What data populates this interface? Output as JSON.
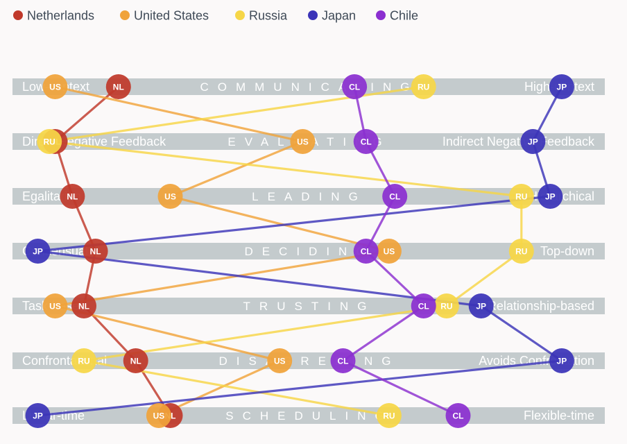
{
  "chart_data": {
    "type": "line",
    "title": "",
    "x_range": [
      0,
      1
    ],
    "legend_position": "top-left",
    "scales": [
      {
        "name": "COMMUNICATING",
        "left": "Low-context",
        "right": "High-context"
      },
      {
        "name": "EVALUATING",
        "left": "Direct Negative Feedback",
        "right": "Indirect Negative Feedback"
      },
      {
        "name": "LEADING",
        "left": "Egalitarian",
        "right": "Hierarchical"
      },
      {
        "name": "DECIDING",
        "left": "Consensual",
        "right": "Top-down"
      },
      {
        "name": "TRUSTING",
        "left": "Task-based",
        "right": "Relationship-based"
      },
      {
        "name": "DISAGREEING",
        "left": "Confrontational",
        "right": "Avoids Confrontation"
      },
      {
        "name": "SCHEDULING",
        "left": "Linear-time",
        "right": "Flexible-time"
      }
    ],
    "series": [
      {
        "name": "Netherlands",
        "code": "NL",
        "color": "#c0392b",
        "values": [
          0.16,
          0.05,
          0.08,
          0.12,
          0.1,
          0.19,
          0.25
        ]
      },
      {
        "name": "United States",
        "code": "US",
        "color": "#f0a33a",
        "values": [
          0.05,
          0.48,
          0.25,
          0.63,
          0.05,
          0.44,
          0.23
        ]
      },
      {
        "name": "Russia",
        "code": "RU",
        "color": "#f6d647",
        "values": [
          0.69,
          0.04,
          0.86,
          0.86,
          0.73,
          0.1,
          0.63
        ]
      },
      {
        "name": "Japan",
        "code": "JP",
        "color": "#3b34b8",
        "values": [
          0.93,
          0.88,
          0.91,
          0.02,
          0.79,
          0.93,
          0.02
        ]
      },
      {
        "name": "Chile",
        "code": "CL",
        "color": "#8b2fd0",
        "values": [
          0.57,
          0.59,
          0.64,
          0.59,
          0.69,
          0.55,
          0.75
        ]
      }
    ]
  }
}
